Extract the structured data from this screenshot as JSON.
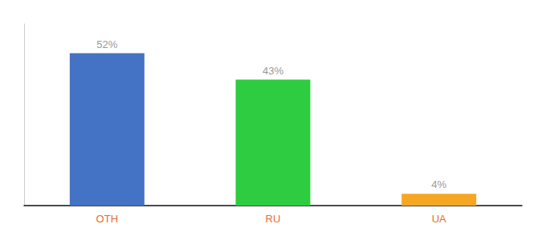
{
  "chart_data": {
    "type": "bar",
    "categories": [
      "OTH",
      "RU",
      "UA"
    ],
    "values": [
      52,
      43,
      4
    ],
    "value_labels": [
      "52%",
      "43%",
      "4%"
    ],
    "colors": [
      "#4472c4",
      "#2ecc40",
      "#f5a623"
    ],
    "ylim": [
      0,
      62
    ],
    "grid": false,
    "data_labels": true,
    "tick_labels": "x"
  }
}
